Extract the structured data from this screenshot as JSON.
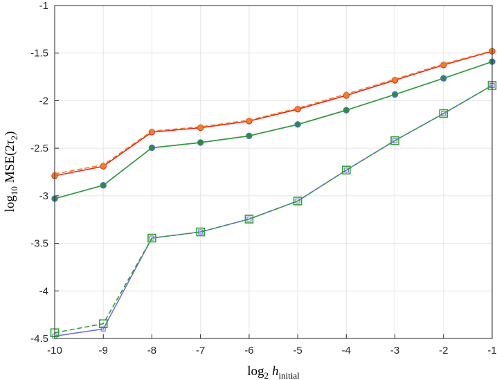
{
  "chart_data": {
    "type": "line",
    "xlabel": "log2 h_initial",
    "ylabel": "log10 MSE(2τ2)",
    "xlabel_parts": {
      "log": "log",
      "base": "2",
      "var": "h",
      "sub": "initial"
    },
    "ylabel_parts": {
      "log": "log",
      "base": "10",
      "fn": "MSE(2",
      "var": "τ",
      "sub": "2",
      "close": ")"
    },
    "xlim": [
      -10,
      -1
    ],
    "ylim": [
      -4.5,
      -1
    ],
    "xticks": [
      -10,
      -9,
      -8,
      -7,
      -6,
      -5,
      -4,
      -3,
      -2,
      -1
    ],
    "yticks": [
      -1,
      -1.5,
      -2,
      -2.5,
      -3,
      -3.5,
      -4,
      -4.5
    ],
    "grid": true,
    "x": [
      -10,
      -9,
      -8,
      -7,
      -6,
      -5,
      -4,
      -3,
      -2,
      -1
    ],
    "series": [
      {
        "values": [
          -2.79,
          -2.69,
          -2.33,
          -2.285,
          -2.215,
          -2.09,
          -1.945,
          -1.785,
          -1.625,
          -1.48
        ],
        "color": "#e8231a",
        "dash": false,
        "marker": "circle",
        "marker_fill": "#f07f2a"
      },
      {
        "values": [
          -2.77,
          -2.675,
          -2.32,
          -2.275,
          -2.205,
          -2.08,
          -1.93,
          -1.775,
          -1.615,
          -1.475
        ],
        "color": "#f27c22",
        "dash": true,
        "marker": "star",
        "marker_fill": "#f07f2a"
      },
      {
        "values": [
          -3.03,
          -2.89,
          -2.495,
          -2.44,
          -2.37,
          -2.25,
          -2.1,
          -1.935,
          -1.765,
          -1.59
        ],
        "color": "#5a67d8",
        "dash": false,
        "marker": "circle",
        "marker_fill": "#2a7ec8"
      },
      {
        "values": [
          -3.03,
          -2.89,
          -2.495,
          -2.44,
          -2.37,
          -2.25,
          -2.1,
          -1.935,
          -1.765,
          -1.59
        ],
        "color": "#2fa030",
        "dash": false,
        "marker": "star",
        "marker_fill": "#2a8f2a"
      },
      {
        "values": [
          -4.475,
          -4.4,
          -3.445,
          -3.38,
          -3.245,
          -3.055,
          -2.73,
          -2.42,
          -2.135,
          -1.84
        ],
        "color": "#6b6fe0",
        "dash": false,
        "marker": "square_small",
        "marker_fill": "#7a7ee8"
      },
      {
        "values": [
          -4.44,
          -4.345,
          -3.445,
          -3.38,
          -3.245,
          -3.055,
          -2.73,
          -2.42,
          -2.135,
          -1.84
        ],
        "color": "#2fa030",
        "dash": true,
        "marker": "square",
        "marker_fill": "#2fa030"
      }
    ]
  }
}
